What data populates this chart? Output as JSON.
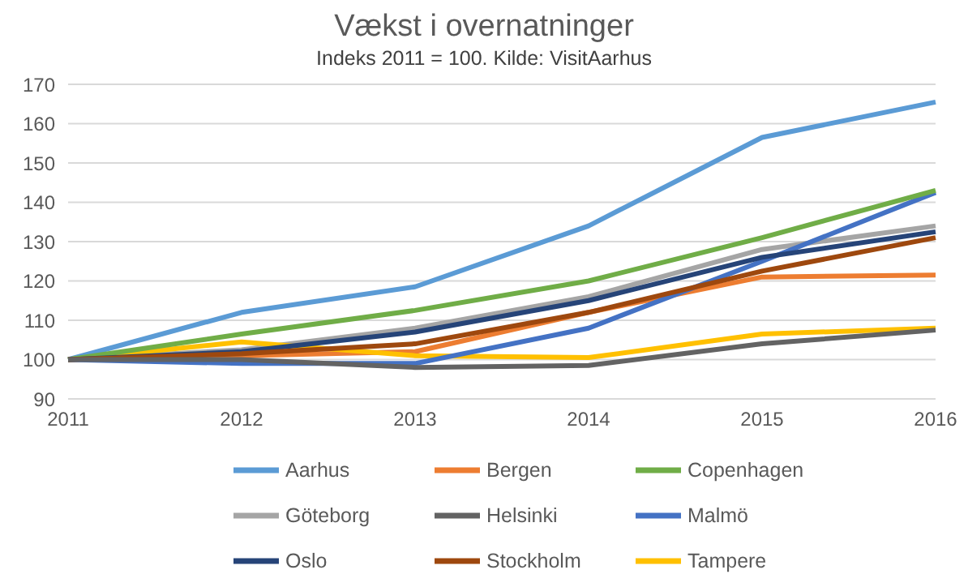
{
  "chart_data": {
    "type": "line",
    "title": "Vækst i overnatninger",
    "subtitle": "Indeks 2011 = 100. Kilde: VisitAarhus",
    "categories": [
      "2011",
      "2012",
      "2013",
      "2014",
      "2015",
      "2016"
    ],
    "ylim": [
      90,
      170
    ],
    "yticks": [
      90,
      100,
      110,
      120,
      130,
      140,
      150,
      160,
      170
    ],
    "grid": "y",
    "legend": "bottom",
    "marker": "none",
    "line_style": "solid",
    "series": [
      {
        "name": "Aarhus",
        "color": "#5b9bd5",
        "values": [
          100,
          112,
          118.5,
          134,
          156.5,
          165.5
        ]
      },
      {
        "name": "Bergen",
        "color": "#ed7d31",
        "values": [
          100,
          101,
          102,
          112,
          121,
          121.5
        ]
      },
      {
        "name": "Göteborg",
        "color": "#a5a5a5",
        "values": [
          100,
          102.5,
          108,
          116,
          128,
          134
        ]
      },
      {
        "name": "Tampere",
        "color": "#ffc000",
        "values": [
          100,
          104.5,
          101,
          100.5,
          106.5,
          108
        ]
      },
      {
        "name": "Malmö",
        "color": "#4472c4",
        "values": [
          100,
          99,
          99,
          108,
          125,
          142.5
        ]
      },
      {
        "name": "Copenhagen",
        "color": "#70ad47",
        "values": [
          100,
          106.5,
          112.5,
          120,
          131,
          143
        ]
      },
      {
        "name": "Oslo",
        "color": "#264478",
        "values": [
          100,
          102,
          107,
          115,
          126,
          132.5
        ]
      },
      {
        "name": "Stockholm",
        "color": "#9e480e",
        "values": [
          100,
          101.5,
          104,
          112,
          122.5,
          131
        ]
      },
      {
        "name": "Helsinki",
        "color": "#636363",
        "values": [
          100,
          100,
          98,
          98.5,
          104,
          107.5
        ]
      }
    ]
  }
}
